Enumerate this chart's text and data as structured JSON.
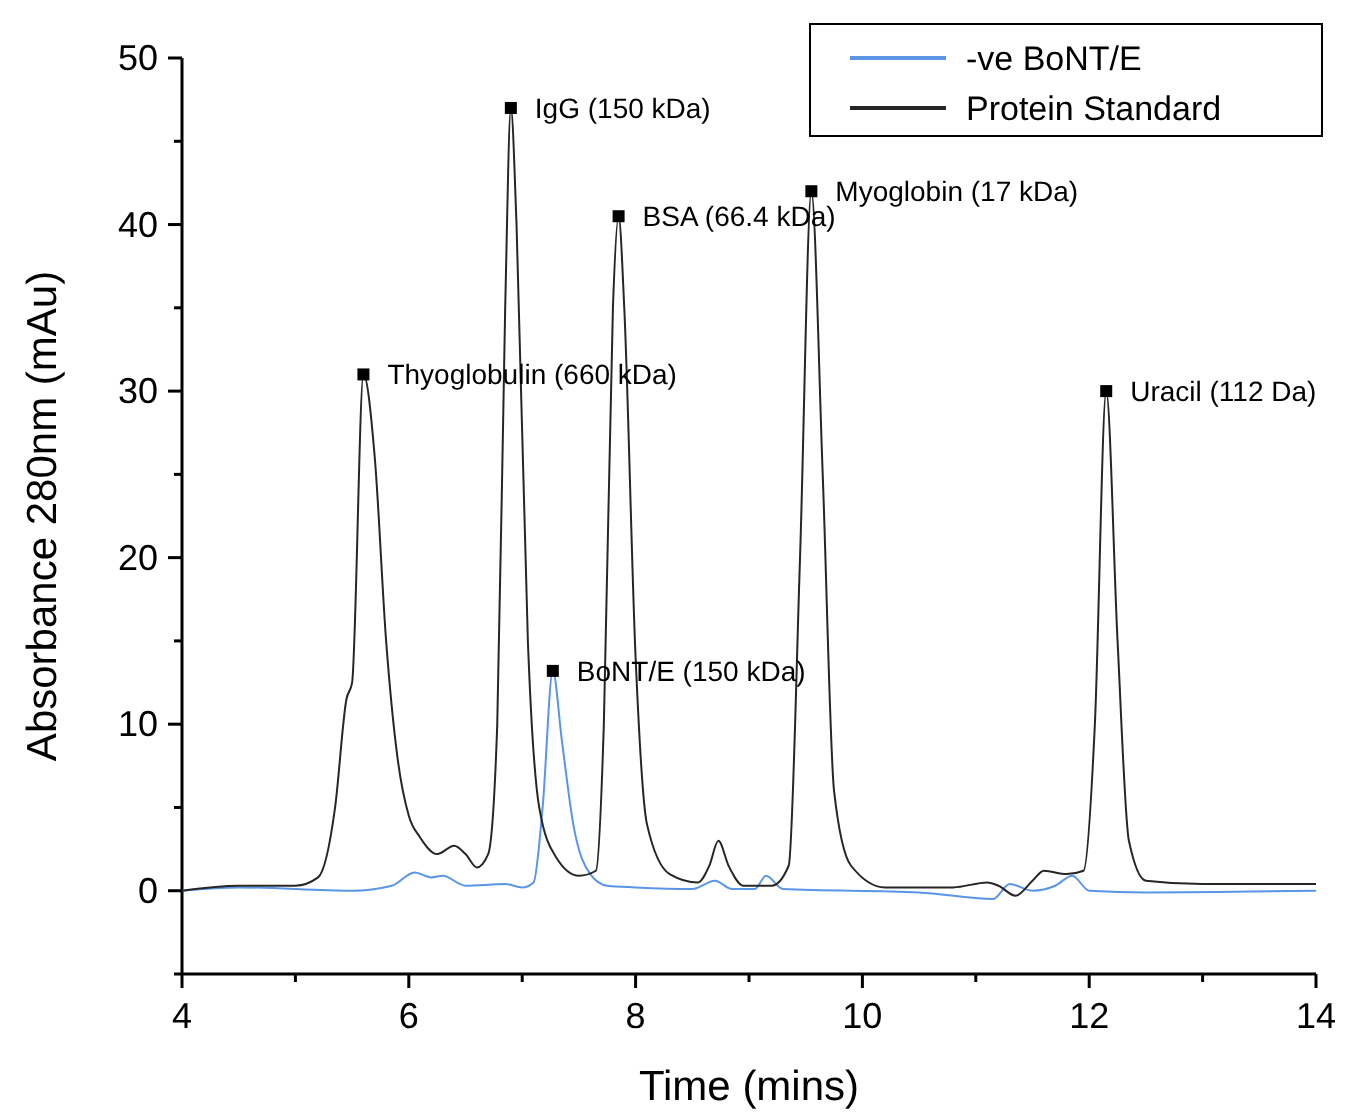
{
  "chart_data": {
    "type": "line",
    "xlabel": "Time (mins)",
    "ylabel": "Absorbance 280nm (mAu)",
    "xlim": [
      4,
      14
    ],
    "xticks": [
      4,
      {
        "value": 5,
        "label": null
      },
      6,
      {
        "value": 7,
        "label": null
      },
      8,
      {
        "value": 9,
        "label": null
      },
      10,
      {
        "value": 11,
        "label": null
      },
      12,
      {
        "value": 13,
        "label": null
      },
      14
    ],
    "ylim": [
      -5,
      50
    ],
    "yticks": [
      {
        "value": -5,
        "label": null
      },
      0,
      {
        "value": 5,
        "label": null
      },
      10,
      {
        "value": 15,
        "label": null
      },
      20,
      {
        "value": 25,
        "label": null
      },
      30,
      {
        "value": 35,
        "label": null
      },
      40,
      {
        "value": 45,
        "label": null
      },
      50
    ],
    "grid": false,
    "legend": "top right",
    "line_style": "solid",
    "marker": "none",
    "series": [
      {
        "name": "-ve BoNT/E",
        "color": "#5b95e6",
        "x": [
          4.0,
          4.5,
          5.5,
          5.85,
          6.05,
          6.2,
          6.3,
          6.5,
          6.85,
          7.0,
          7.1,
          7.18,
          7.27,
          7.35,
          7.45,
          7.6,
          7.75,
          8.0,
          8.5,
          8.7,
          8.85,
          9.05,
          9.15,
          9.3,
          10.5,
          11.15,
          11.3,
          11.5,
          11.7,
          11.85,
          12.0,
          12.5,
          14.0
        ],
        "values": [
          0,
          0.2,
          0,
          0.3,
          1.1,
          0.8,
          0.9,
          0.3,
          0.4,
          0.2,
          0.5,
          5,
          13.2,
          9,
          4,
          1.0,
          0.3,
          0.2,
          0.1,
          0.6,
          0.1,
          0.1,
          0.9,
          0.1,
          -0.1,
          -0.5,
          0.4,
          0.0,
          0.3,
          0.9,
          0,
          -0.1,
          0
        ]
      },
      {
        "name": "Protein Standard",
        "color": "#262626",
        "x": [
          4.0,
          4.5,
          5.0,
          5.2,
          5.35,
          5.45,
          5.5,
          5.6,
          5.7,
          5.8,
          5.9,
          6.0,
          6.1,
          6.25,
          6.4,
          6.5,
          6.6,
          6.7,
          6.78,
          6.85,
          6.9,
          6.95,
          7.05,
          7.15,
          7.3,
          7.5,
          7.65,
          7.72,
          7.8,
          7.85,
          7.9,
          8.0,
          8.1,
          8.3,
          8.55,
          8.65,
          8.73,
          8.82,
          8.95,
          9.2,
          9.35,
          9.45,
          9.55,
          9.65,
          9.75,
          9.9,
          10.2,
          10.8,
          11.1,
          11.2,
          11.35,
          11.5,
          11.6,
          11.8,
          11.95,
          12.05,
          12.15,
          12.25,
          12.35,
          12.5,
          13.0,
          14.0
        ],
        "values": [
          0,
          0.3,
          0.3,
          0.8,
          5,
          11.5,
          12.5,
          31,
          26,
          15,
          8,
          4.5,
          3.2,
          2.2,
          2.7,
          2.2,
          1.4,
          2.2,
          10,
          35,
          47,
          40,
          15,
          5,
          2,
          0.9,
          1.2,
          10,
          35,
          40.5,
          35,
          14,
          4,
          1.0,
          0.5,
          1.5,
          3.0,
          1.5,
          0.3,
          0.3,
          1.5,
          20,
          42,
          25,
          6,
          1.5,
          0.2,
          0.2,
          0.5,
          0.3,
          -0.3,
          0.6,
          1.2,
          1.0,
          1.2,
          10,
          30,
          15,
          3,
          0.6,
          0.4,
          0.4
        ]
      }
    ],
    "annotations": [
      {
        "text": "Thyoglobulin (660 kDa)",
        "x": 5.6,
        "y": 31
      },
      {
        "text": "IgG (150 kDa)",
        "x": 6.9,
        "y": 47
      },
      {
        "text": "BSA (66.4 kDa)",
        "x": 7.85,
        "y": 40.5
      },
      {
        "text": "BoNT/E (150 kDa)",
        "x": 7.27,
        "y": 13.2
      },
      {
        "text": "Myoglobin (17 kDa)",
        "x": 9.55,
        "y": 42
      },
      {
        "text": "Uracil (112 Da)",
        "x": 12.15,
        "y": 30
      }
    ]
  }
}
